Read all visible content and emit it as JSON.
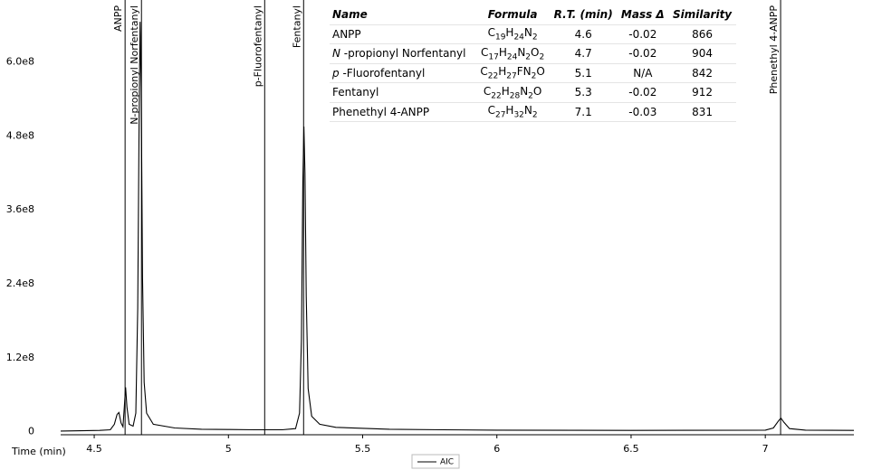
{
  "chart_data": {
    "type": "line",
    "x_label": "Time (min)",
    "xlim": [
      4.375,
      7.33
    ],
    "ylim": [
      -5000000,
      693000000
    ],
    "xticks": [
      4.5,
      5,
      5.5,
      6,
      6.5,
      7
    ],
    "yticks": [
      0,
      {
        "value": 120000000,
        "label": "1.2e8"
      },
      {
        "value": 240000000,
        "label": "2.4e8"
      },
      {
        "value": 360000000,
        "label": "3.6e8"
      },
      {
        "value": 480000000,
        "label": "4.8e8"
      },
      {
        "value": 600000000,
        "label": "6.0e8"
      }
    ],
    "series": [
      {
        "name": "AIC",
        "color": "#000000",
        "x": [
          4.375,
          4.45,
          4.52,
          4.56,
          4.575,
          4.585,
          4.592,
          4.6,
          4.607,
          4.612,
          4.617,
          4.622,
          4.63,
          4.645,
          4.655,
          4.662,
          4.667,
          4.671,
          4.675,
          4.68,
          4.686,
          4.695,
          4.72,
          4.8,
          4.9,
          5.0,
          5.1,
          5.2,
          5.25,
          5.265,
          5.272,
          5.277,
          5.281,
          5.285,
          5.29,
          5.297,
          5.31,
          5.34,
          5.4,
          5.6,
          5.8,
          6.0,
          6.5,
          7.0,
          7.03,
          7.05,
          7.058,
          7.07,
          7.09,
          7.15,
          7.33
        ],
        "values": [
          1000000,
          1500000,
          2000000,
          3000000,
          12000000,
          28000000,
          31000000,
          14000000,
          8000000,
          40000000,
          72000000,
          40000000,
          12000000,
          9000000,
          30000000,
          200000000,
          500000000,
          665000000,
          560000000,
          250000000,
          80000000,
          30000000,
          12000000,
          6000000,
          4000000,
          3500000,
          3000000,
          3000000,
          5000000,
          30000000,
          150000000,
          400000000,
          495000000,
          420000000,
          220000000,
          70000000,
          25000000,
          12000000,
          7000000,
          4000000,
          3000000,
          2500000,
          2000000,
          2500000,
          6000000,
          18000000,
          22000000,
          15000000,
          5000000,
          2500000,
          2000000
        ]
      }
    ],
    "markers": [
      {
        "label": "ANPP",
        "x": 4.615
      },
      {
        "label": "N-propionyl Norfentanyl",
        "x": 4.676
      },
      {
        "label": "p-Fluorofentanyl",
        "x": 5.135
      },
      {
        "label": "Fentanyl",
        "x": 5.28
      },
      {
        "label": "Phenethyl 4-ANPP",
        "x": 7.057
      }
    ],
    "table": {
      "header": [
        "Name",
        "Formula",
        "R.T. (min)",
        "Mass Δ",
        "Similarity"
      ],
      "rows": [
        {
          "name": [
            "ANPP"
          ],
          "formula": "C19H24N2",
          "rt": 4.6,
          "mass_delta": -0.02,
          "similarity": 866
        },
        {
          "name": [
            "N",
            " -propionyl Norfentanyl"
          ],
          "formula": "C17H24N2O2",
          "rt": 4.7,
          "mass_delta": -0.02,
          "similarity": 904
        },
        {
          "name": [
            "p",
            " -Fluorofentanyl"
          ],
          "formula": "C22H27FN2O",
          "rt": 5.1,
          "mass_delta": "N/A",
          "similarity": 842
        },
        {
          "name": [
            "Fentanyl"
          ],
          "formula": "C22H28N2O",
          "rt": 5.3,
          "mass_delta": -0.02,
          "similarity": 912
        },
        {
          "name": [
            "Phenethyl 4-ANPP"
          ],
          "formula": "C27H32N2",
          "rt": 7.1,
          "mass_delta": -0.03,
          "similarity": 831
        }
      ]
    }
  }
}
